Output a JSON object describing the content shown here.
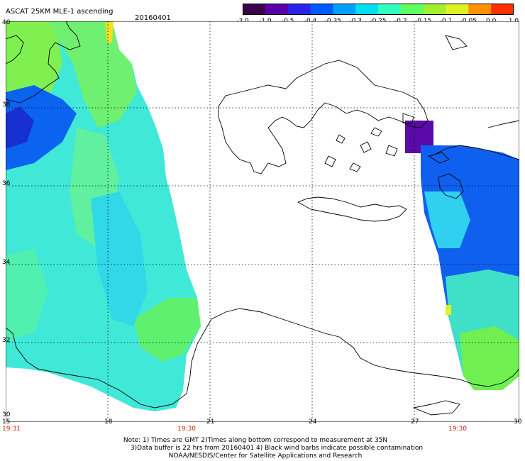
{
  "header": {
    "title": "ASCAT 25KM MLE-1 ascending",
    "date": "20160401"
  },
  "colorbar": {
    "ticks": [
      "-3.0",
      "-1.0",
      "-0.5",
      "-0.4",
      "-0.35",
      "-0.3",
      "-0.25",
      "-0.2",
      "-0.15",
      "-0.1",
      "-0.05",
      "0.0",
      "1.0"
    ],
    "colors": [
      "#3a004a",
      "#5a00a8",
      "#2a24e8",
      "#005aff",
      "#00a0ff",
      "#00e0f0",
      "#30ffc0",
      "#60ff60",
      "#a0f030",
      "#e0f020",
      "#ff9000",
      "#ff3000"
    ]
  },
  "axes": {
    "lat_labels": [
      "40",
      "38",
      "36",
      "34",
      "32",
      "30"
    ],
    "lon_labels": [
      "15",
      "18",
      "21",
      "24",
      "27",
      "30"
    ]
  },
  "times": [
    "19:31",
    "19:30",
    "19:30"
  ],
  "notes": [
    "Note: 1) Times are GMT 2)Times along bottom correspond to measurement at 35N",
    "3)Data buffer is 22 hrs from 20160401 4) Black wind barbs indicate possible contamination",
    "NOAA/NESDIS/Center for Satellite Applications and Research"
  ]
}
